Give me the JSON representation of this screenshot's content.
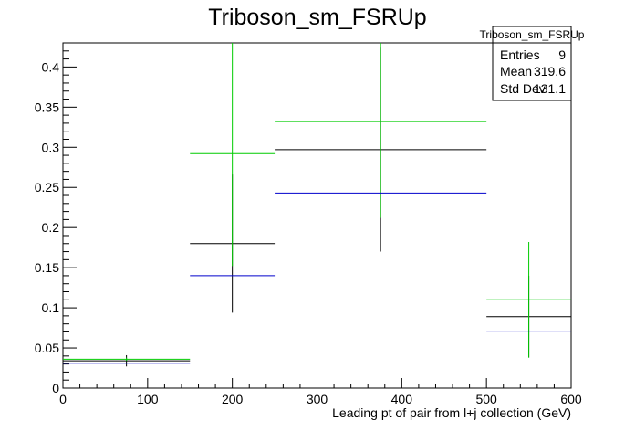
{
  "chart_data": {
    "type": "histogram",
    "title": "Triboson_sm_FSRUp",
    "xlabel": "Leading pt of pair from l+j collection (GeV)",
    "ylabel": "",
    "xlim": [
      0,
      600
    ],
    "ylim": [
      0,
      0.43
    ],
    "x_ticks": [
      0,
      100,
      200,
      300,
      400,
      500,
      600
    ],
    "y_ticks": [
      0,
      0.05,
      0.1,
      0.15,
      0.2,
      0.25,
      0.3,
      0.35,
      0.4
    ],
    "x_tick_labels": [
      "0",
      "100",
      "200",
      "300",
      "400",
      "500",
      "600"
    ],
    "y_tick_labels": [
      "0",
      "0.05",
      "0.1",
      "0.15",
      "0.2",
      "0.25",
      "0.3",
      "0.35",
      "0.4"
    ],
    "bins": [
      {
        "low": 0,
        "high": 150,
        "center": 75
      },
      {
        "low": 150,
        "high": 250,
        "center": 200
      },
      {
        "low": 250,
        "high": 500,
        "center": 375
      },
      {
        "low": 500,
        "high": 600,
        "center": 550
      }
    ],
    "series": [
      {
        "color": "#000000",
        "values": [
          0.034,
          0.18,
          0.297,
          0.089
        ],
        "errors": [
          0.007,
          0.086,
          0.127,
          0.051
        ]
      },
      {
        "color": "#00cc00",
        "values": [
          0.036,
          0.292,
          0.332,
          0.11
        ],
        "errors": [
          0.002,
          0.14,
          0.12,
          0.072
        ]
      },
      {
        "color": "#0000cc",
        "values": [
          0.031,
          0.14,
          0.243,
          0.071
        ],
        "errors": [
          0,
          0,
          0,
          0
        ]
      }
    ]
  },
  "stats_box": {
    "title": "Triboson_sm_FSRUp",
    "rows": [
      {
        "label": "Entries",
        "value": "9"
      },
      {
        "label": "Mean",
        "value": "319.6"
      },
      {
        "label": "Std Dev",
        "value": "131.1"
      }
    ]
  }
}
